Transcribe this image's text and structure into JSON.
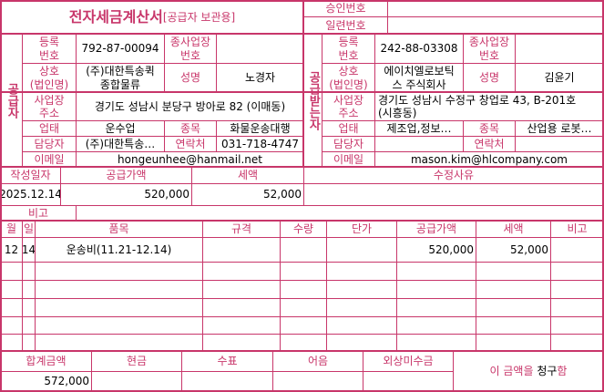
{
  "header": {
    "title": "전자세금계산서",
    "subtitle": "[공급자 보관용]",
    "approval_label": "승인번호",
    "approval_value": "",
    "serial_label": "일련번호",
    "serial_value": ""
  },
  "supplier": {
    "section_label": "공급자",
    "reg_label": "등록\n번호",
    "reg_no": "792-87-00094",
    "sub_label": "종사업장\n번호",
    "sub_no": "",
    "name_label": "상호\n(법인명)",
    "name": "(주)대한특송퀵\n종합물류",
    "ceo_label": "성명",
    "ceo": "노경자",
    "addr_label": "사업장\n주소",
    "addr": "경기도 성남시 분당구 방아로 82 (이매동)",
    "type_label": "업태",
    "type": "운수업",
    "item_label": "종목",
    "item": "화물운송대행",
    "contact_label": "담당자",
    "contact": "(주)대한특송…",
    "phone_label": "연락처",
    "phone": "031-718-4747",
    "email_label": "이메일",
    "email": "hongeunhee@hanmail.net"
  },
  "receiver": {
    "section_label": "공급받는자",
    "reg_label": "등록\n번호",
    "reg_no": "242-88-03308",
    "sub_label": "종사업장\n번호",
    "sub_no": "",
    "name_label": "상호\n(법인명)",
    "name": "에이치엘로보틱\n스 주식회사",
    "ceo_label": "성명",
    "ceo": "김윤기",
    "addr_label": "사업장\n주소",
    "addr": "경기도 성남시 수정구 창업로 43, B-201호\n(시흥동)",
    "type_label": "업태",
    "type": "제조업,정보…",
    "item_label": "종목",
    "item": "산업용 로봇…",
    "contact_label": "담당자",
    "contact": "",
    "phone_label": "연락처",
    "phone": "",
    "email_label": "이메일",
    "email": "mason.kim@hlcompany.com"
  },
  "summary": {
    "date_label": "작성일자",
    "date": "2025.12.14",
    "supply_label": "공급가액",
    "supply": "520,000",
    "tax_label": "세액",
    "tax": "52,000",
    "reason_label": "수정사유",
    "reason": "",
    "note_label": "비고",
    "note": ""
  },
  "items": {
    "headers": [
      "월",
      "일",
      "품목",
      "규격",
      "수량",
      "단가",
      "공급가액",
      "세액",
      "비고"
    ],
    "rows": [
      [
        "12",
        "14",
        "운송비(11.21-12.14)",
        "",
        "",
        "",
        "520,000",
        "52,000",
        ""
      ]
    ]
  },
  "footer": {
    "total_label": "합계금액",
    "total": "572,000",
    "cash_label": "현금",
    "cash": "",
    "check_label": "수표",
    "check": "",
    "note_label": "어음",
    "note": "",
    "credit_label": "외상미수금",
    "credit": "",
    "claim_prefix": "이 금액을 ",
    "claim_word": "청구",
    "claim_suffix": "함"
  },
  "colors": {
    "accent": "#c8366a"
  }
}
